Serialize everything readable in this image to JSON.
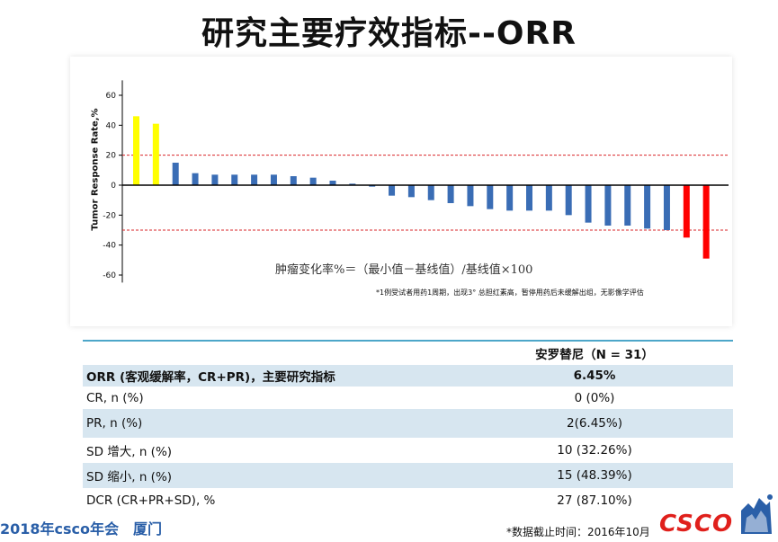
{
  "title": "研究主要疗效指标--ORR",
  "chart_data": {
    "type": "bar",
    "ylabel": "Tumor Response Rate,%",
    "ylim": [
      -65,
      70
    ],
    "yticks": [
      60,
      40,
      20,
      0,
      -20,
      -40,
      -60
    ],
    "reference_lines": [
      20,
      -30
    ],
    "values": [
      46,
      41,
      15,
      8,
      7,
      7,
      7,
      7,
      6,
      5,
      3,
      1,
      -1,
      -7,
      -8,
      -10,
      -12,
      -14,
      -16,
      -17,
      -17,
      -17,
      -20,
      -25,
      -27,
      -27,
      -29,
      -30,
      -35,
      -49
    ],
    "colors": [
      "#ffff00",
      "#ffff00",
      "#3a6db5",
      "#3a6db5",
      "#3a6db5",
      "#3a6db5",
      "#3a6db5",
      "#3a6db5",
      "#3a6db5",
      "#3a6db5",
      "#3a6db5",
      "#3a6db5",
      "#3a6db5",
      "#3a6db5",
      "#3a6db5",
      "#3a6db5",
      "#3a6db5",
      "#3a6db5",
      "#3a6db5",
      "#3a6db5",
      "#3a6db5",
      "#3a6db5",
      "#3a6db5",
      "#3a6db5",
      "#3a6db5",
      "#3a6db5",
      "#3a6db5",
      "#3a6db5",
      "#ff0000",
      "#ff0000"
    ],
    "formula": "肿瘤变化率%＝（最小值－基线值）/基线值×100",
    "footnote": "*1例受试者用药1周期，出现3° 总胆红素高，暂停用药后未缓解出组，无影像学评估"
  },
  "table": {
    "header": "安罗替尼（N = 31）",
    "rows": [
      {
        "label": "ORR (客观缓解率，CR+PR)，主要研究指标",
        "value": "6.45%"
      },
      {
        "label": "CR, n (%)",
        "value": "0 (0%)"
      },
      {
        "label": "PR, n (%)",
        "value": "2(6.45%)"
      },
      {
        "label": "SD 增大, n (%)",
        "value": "10 (32.26%)"
      },
      {
        "label": "SD 缩小, n (%)",
        "value": "15 (48.39%)"
      },
      {
        "label": "DCR (CR+PR+SD), %",
        "value": "27 (87.10%)"
      }
    ]
  },
  "footer": {
    "conference": "2018年csco年会　厦门",
    "data_cutoff": "*数据截止时间：2016年10月",
    "logo": "CSCO"
  }
}
